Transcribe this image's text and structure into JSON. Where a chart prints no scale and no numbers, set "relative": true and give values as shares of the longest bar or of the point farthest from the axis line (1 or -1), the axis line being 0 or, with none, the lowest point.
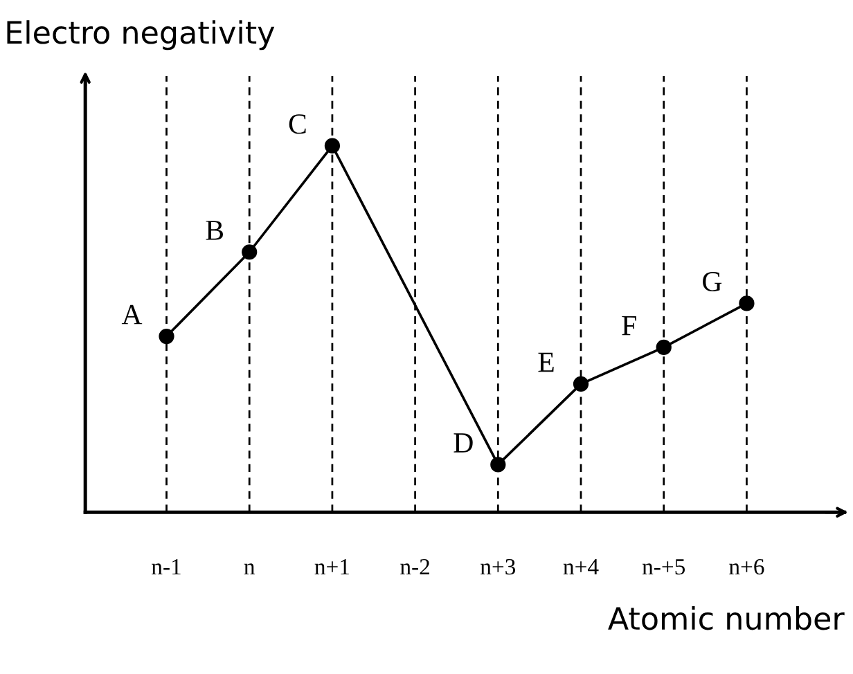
{
  "chart_data": {
    "type": "line",
    "relative": true,
    "xlabel": "Atomic number",
    "ylabel": "Electro negativity",
    "categories": [
      "n-1",
      "n",
      "n+1",
      "n-2",
      "n+3",
      "n+4",
      "n-+5",
      "n+6"
    ],
    "series": [
      {
        "color": "#000000",
        "values": [
          0.48,
          0.71,
          1,
          null,
          0.13,
          0.35,
          0.45,
          0.57
        ]
      }
    ],
    "marker": "circle",
    "line_style": "solid",
    "grid": "x",
    "legend": false,
    "annotations": [
      {
        "text": "A",
        "x": "n-1",
        "y": 0.48
      },
      {
        "text": "B",
        "x": "n",
        "y": 0.71
      },
      {
        "text": "C",
        "x": "n+1",
        "y": 1
      },
      {
        "text": "D",
        "x": "n+3",
        "y": 0.13
      },
      {
        "text": "E",
        "x": "n+4",
        "y": 0.35
      },
      {
        "text": "F",
        "x": "n-+5",
        "y": 0.45
      },
      {
        "text": "G",
        "x": "n+6",
        "y": 0.57
      }
    ]
  }
}
